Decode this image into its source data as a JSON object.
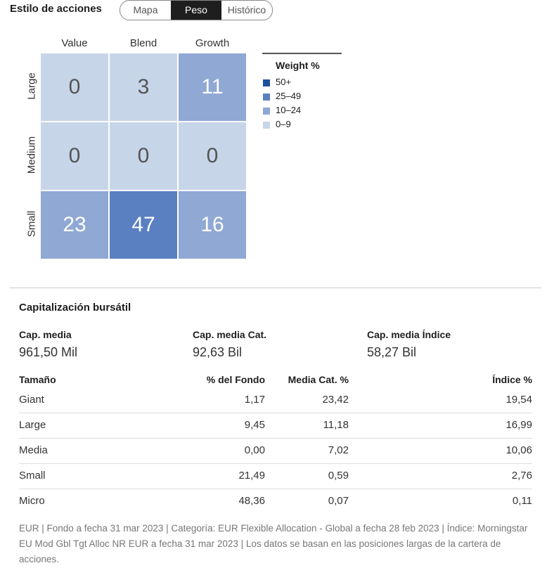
{
  "header": {
    "title": "Estilo de acciones",
    "tabs": [
      "Mapa",
      "Peso",
      "Histórico"
    ],
    "active_tab": 1
  },
  "style_box": {
    "columns": [
      "Value",
      "Blend",
      "Growth"
    ],
    "rows": [
      "Large",
      "Medium",
      "Small"
    ],
    "cells": [
      [
        0,
        3,
        11
      ],
      [
        0,
        0,
        0
      ],
      [
        23,
        47,
        16
      ]
    ],
    "legend": {
      "title": "Weight %",
      "items": [
        {
          "label": "50+",
          "color": "#1f4f9e"
        },
        {
          "label": "25–49",
          "color": "#5a80c1"
        },
        {
          "label": "10–24",
          "color": "#8fa8d4"
        },
        {
          "label": "0–9",
          "color": "#c7d5e9"
        }
      ]
    }
  },
  "market_cap": {
    "title": "Capitalización bursátil",
    "summary": [
      {
        "label": "Cap. media",
        "value": "961,50 Mil"
      },
      {
        "label": "Cap. media Cat.",
        "value": "92,63 Bil"
      },
      {
        "label": "Cap. media Índice",
        "value": "58,27 Bil"
      }
    ],
    "table": {
      "headers": [
        "Tamaño",
        "% del Fondo",
        "Media Cat. %",
        "Índice %"
      ],
      "rows": [
        [
          "Giant",
          "1,17",
          "23,42",
          "19,54"
        ],
        [
          "Large",
          "9,45",
          "11,18",
          "16,99"
        ],
        [
          "Media",
          "0,00",
          "7,02",
          "10,06"
        ],
        [
          "Small",
          "21,49",
          "0,59",
          "2,76"
        ],
        [
          "Micro",
          "48,36",
          "0,07",
          "0,11"
        ]
      ]
    }
  },
  "footnote": "EUR | Fondo a fecha 31 mar 2023 | Categoría: EUR Flexible Allocation - Global a fecha 28 feb 2023 | Índice: Morningstar EU Mod Gbl Tgt Alloc NR EUR a fecha 31 mar 2023 | Los datos se basan en las posiciones largas de la cartera de acciones."
}
